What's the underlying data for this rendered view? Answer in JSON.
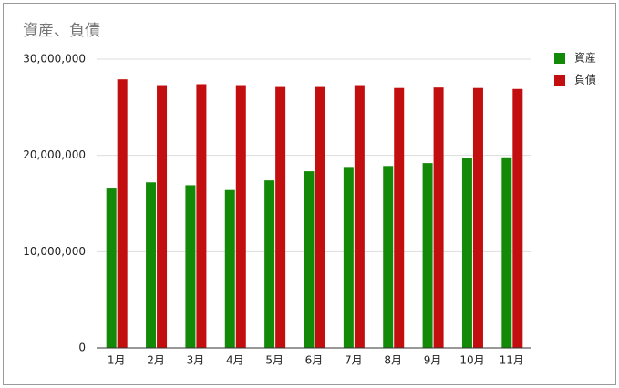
{
  "chart_data": {
    "type": "bar",
    "title": "資産、負債",
    "categories": [
      "1月",
      "2月",
      "3月",
      "4月",
      "5月",
      "6月",
      "7月",
      "8月",
      "9月",
      "10月",
      "11月"
    ],
    "series": [
      {
        "name": "資産",
        "color": "#138a07",
        "values": [
          16650000,
          17200000,
          16900000,
          16400000,
          17400000,
          18350000,
          18800000,
          18900000,
          19200000,
          19700000,
          19800000
        ]
      },
      {
        "name": "負債",
        "color": "#c20e0e",
        "values": [
          27900000,
          27300000,
          27400000,
          27300000,
          27200000,
          27200000,
          27300000,
          27000000,
          27050000,
          27000000,
          26900000
        ]
      }
    ],
    "ylim": [
      0,
      30000000
    ],
    "yticks": [
      0,
      {
        "value": 10000000,
        "label": "10,000,000"
      },
      {
        "value": 20000000,
        "label": "20,000,000"
      },
      {
        "value": 30000000,
        "label": "30,000,000"
      }
    ],
    "grid": true,
    "legend": "right"
  }
}
